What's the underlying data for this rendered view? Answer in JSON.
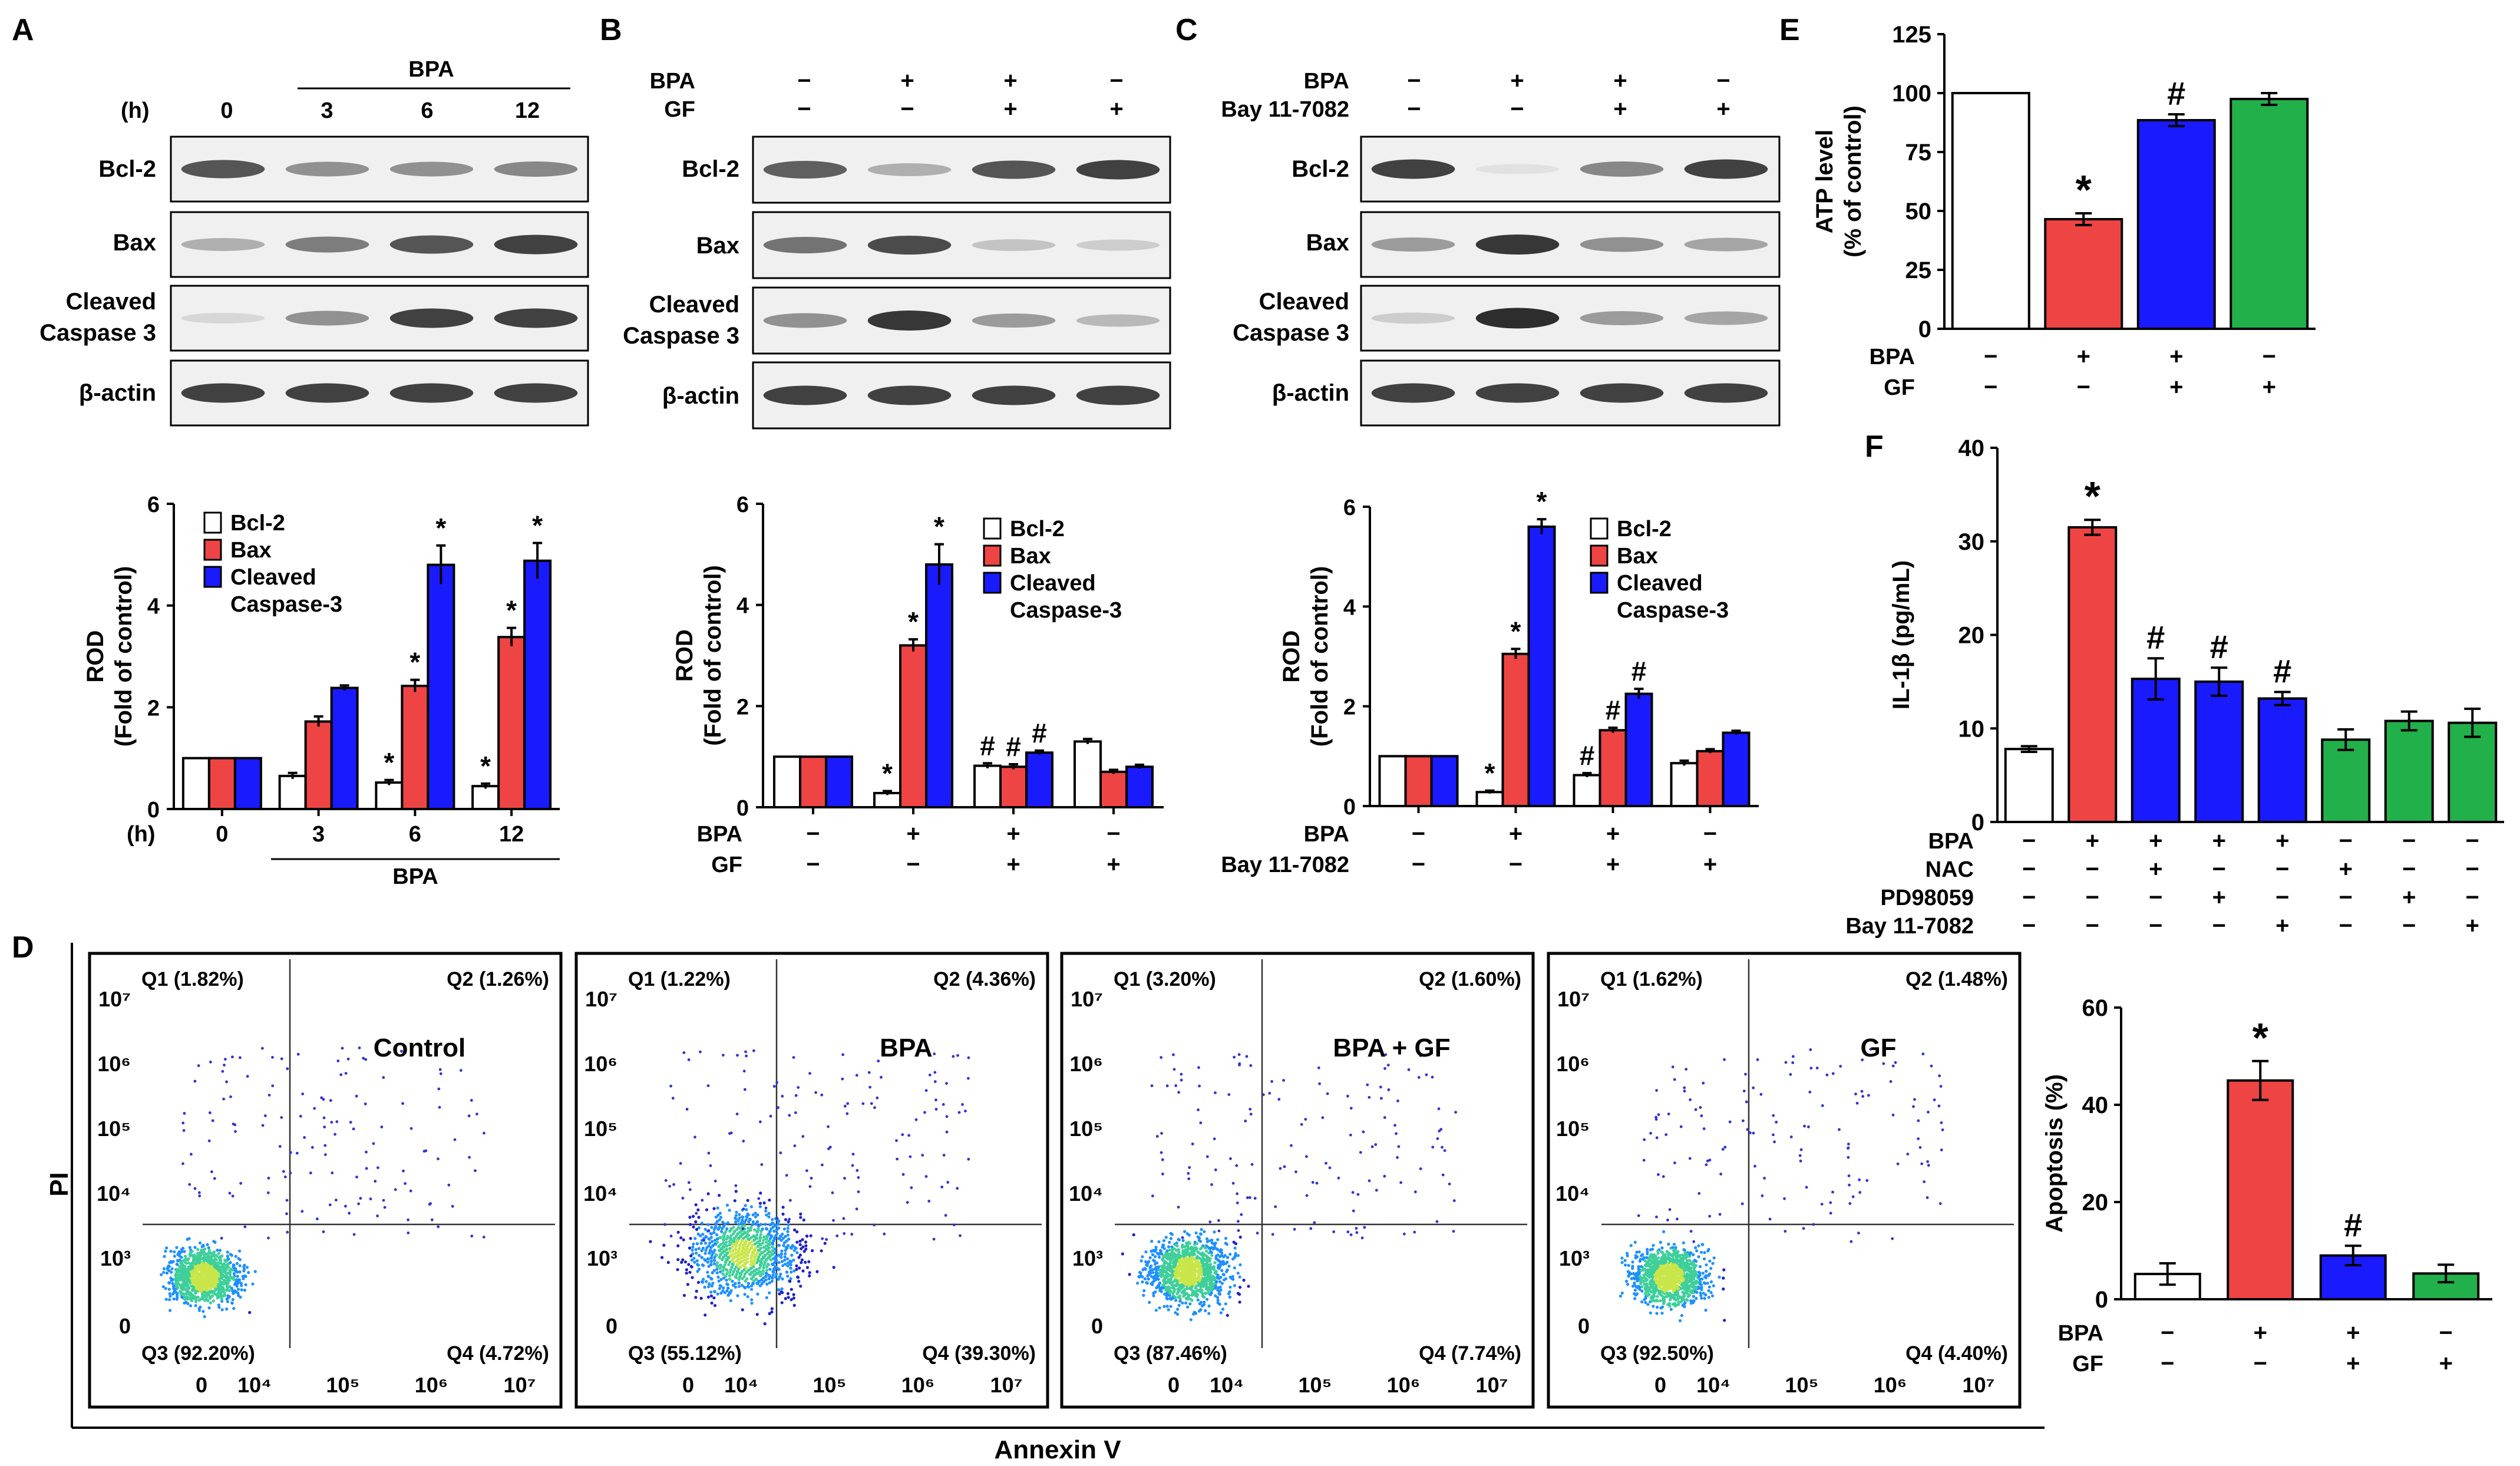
{
  "panels": {
    "A": "A",
    "B": "B",
    "C": "C",
    "D": "D",
    "E": "E",
    "F": "F"
  },
  "blotA": {
    "treatment_label": "BPA",
    "time_label": "(h)",
    "lanes": [
      "0",
      "3",
      "6",
      "12"
    ],
    "rows": [
      "Bcl-2",
      "Bax",
      "Cleaved Caspase 3",
      "β-actin"
    ]
  },
  "blotB": {
    "cond_rows": [
      {
        "label": "BPA",
        "signs": [
          "−",
          "+",
          "+",
          "−"
        ]
      },
      {
        "label": "GF",
        "signs": [
          "−",
          "−",
          "+",
          "+"
        ]
      }
    ],
    "rows": [
      "Bcl-2",
      "Bax",
      "Cleaved Caspase 3",
      "β-actin"
    ]
  },
  "blotC": {
    "cond_rows": [
      {
        "label": "BPA",
        "signs": [
          "−",
          "+",
          "+",
          "−"
        ]
      },
      {
        "label": "Bay 11-7082",
        "signs": [
          "−",
          "−",
          "+",
          "+"
        ]
      }
    ],
    "rows": [
      "Bcl-2",
      "Bax",
      "Cleaved Caspase 3",
      "β-actin"
    ]
  },
  "colors": {
    "white": "#ffffff",
    "red": "#ef4444",
    "blue": "#1a1aff",
    "green": "#22b04a"
  },
  "chart_data": [
    {
      "id": "A-bar",
      "type": "bar",
      "ylabel": "ROD (Fold of control)",
      "ylim": [
        0,
        6
      ],
      "yticks": [
        "0",
        "2",
        "4",
        "6"
      ],
      "categories": [
        "0",
        "3",
        "6",
        "12"
      ],
      "xprefix": "(h)",
      "xgroup_label": "BPA",
      "series": [
        {
          "name": "Bcl-2",
          "color": "#ffffff",
          "values": [
            1.0,
            0.65,
            0.52,
            0.45
          ],
          "err": [
            0,
            0.06,
            0.05,
            0.05
          ],
          "marks": [
            "",
            "",
            "*",
            "*"
          ]
        },
        {
          "name": "Bax",
          "color": "#ef4444",
          "values": [
            1.0,
            1.72,
            2.42,
            3.38
          ],
          "err": [
            0,
            0.1,
            0.12,
            0.18
          ],
          "marks": [
            "",
            "",
            "*",
            "*"
          ]
        },
        {
          "name": "Cleaved Caspase-3",
          "color": "#1a1aff",
          "values": [
            1.0,
            2.38,
            4.8,
            4.88
          ],
          "err": [
            0,
            0.05,
            0.38,
            0.35
          ],
          "marks": [
            "",
            "",
            "*",
            "*"
          ]
        }
      ],
      "legend": [
        "Bcl-2",
        "Bax",
        "Cleaved",
        "Caspase-3"
      ]
    },
    {
      "id": "B-bar",
      "type": "bar",
      "ylabel": "ROD (Fold of control)",
      "ylim": [
        0,
        6
      ],
      "yticks": [
        "0",
        "2",
        "4",
        "6"
      ],
      "categories": [
        "1",
        "2",
        "3",
        "4"
      ],
      "cond_rows": [
        {
          "label": "BPA",
          "signs": [
            "−",
            "+",
            "+",
            "−"
          ]
        },
        {
          "label": "GF",
          "signs": [
            "−",
            "−",
            "+",
            "+"
          ]
        }
      ],
      "series": [
        {
          "name": "Bcl-2",
          "color": "#ffffff",
          "values": [
            1.0,
            0.28,
            0.82,
            1.3
          ],
          "err": [
            0,
            0.04,
            0.05,
            0.05
          ],
          "marks": [
            "",
            "*",
            "#",
            ""
          ]
        },
        {
          "name": "Bax",
          "color": "#ef4444",
          "values": [
            1.0,
            3.2,
            0.8,
            0.7
          ],
          "err": [
            0,
            0.12,
            0.05,
            0.04
          ],
          "marks": [
            "",
            "*",
            "#",
            ""
          ]
        },
        {
          "name": "Cleaved Caspase-3",
          "color": "#1a1aff",
          "values": [
            1.0,
            4.8,
            1.08,
            0.8
          ],
          "err": [
            0,
            0.4,
            0.04,
            0.04
          ],
          "marks": [
            "",
            "*",
            "#",
            ""
          ]
        }
      ],
      "legend": [
        "Bcl-2",
        "Bax",
        "Cleaved",
        "Caspase-3"
      ]
    },
    {
      "id": "C-bar",
      "type": "bar",
      "ylabel": "ROD (Fold of control)",
      "ylim": [
        0,
        6
      ],
      "yticks": [
        "0",
        "2",
        "4",
        "6"
      ],
      "categories": [
        "1",
        "2",
        "3",
        "4"
      ],
      "cond_rows": [
        {
          "label": "BPA",
          "signs": [
            "−",
            "+",
            "+",
            "−"
          ]
        },
        {
          "label": "Bay 11-7082",
          "signs": [
            "−",
            "−",
            "+",
            "+"
          ]
        }
      ],
      "series": [
        {
          "name": "Bcl-2",
          "color": "#ffffff",
          "values": [
            1.0,
            0.28,
            0.62,
            0.86
          ],
          "err": [
            0,
            0.03,
            0.04,
            0.05
          ],
          "marks": [
            "",
            "*",
            "#",
            ""
          ]
        },
        {
          "name": "Bax",
          "color": "#ef4444",
          "values": [
            1.0,
            3.05,
            1.52,
            1.1
          ],
          "err": [
            0,
            0.1,
            0.05,
            0.04
          ],
          "marks": [
            "",
            "*",
            "#",
            ""
          ]
        },
        {
          "name": "Cleaved Caspase-3",
          "color": "#1a1aff",
          "values": [
            1.0,
            5.6,
            2.25,
            1.47
          ],
          "err": [
            0,
            0.15,
            0.1,
            0.04
          ],
          "marks": [
            "",
            "*",
            "#",
            ""
          ]
        }
      ],
      "legend": [
        "Bcl-2",
        "Bax",
        "Cleaved",
        "Caspase-3"
      ]
    },
    {
      "id": "E-bar",
      "type": "bar",
      "ylabel": "ATP level (% of control)",
      "ylim": [
        0,
        125
      ],
      "yticks": [
        "0",
        "25",
        "50",
        "75",
        "100",
        "125"
      ],
      "cond_rows": [
        {
          "label": "BPA",
          "signs": [
            "−",
            "+",
            "+",
            "−"
          ]
        },
        {
          "label": "GF",
          "signs": [
            "−",
            "−",
            "+",
            "+"
          ]
        }
      ],
      "values": [
        100,
        46.5,
        88.5,
        97.5
      ],
      "err": [
        0,
        2.5,
        2.5,
        2.5
      ],
      "colors": [
        "#ffffff",
        "#ef4444",
        "#1a1aff",
        "#22b04a"
      ],
      "marks": [
        "",
        "*",
        "#",
        ""
      ]
    },
    {
      "id": "F-bar",
      "type": "bar",
      "ylabel": "IL-1β (pg/mL)",
      "ylim": [
        0,
        40
      ],
      "yticks": [
        "0",
        "10",
        "20",
        "30",
        "40"
      ],
      "cond_rows": [
        {
          "label": "BPA",
          "signs": [
            "−",
            "+",
            "+",
            "+",
            "+",
            "−",
            "−",
            "−"
          ]
        },
        {
          "label": "NAC",
          "signs": [
            "−",
            "−",
            "+",
            "−",
            "−",
            "+",
            "−",
            "−"
          ]
        },
        {
          "label": "PD98059",
          "signs": [
            "−",
            "−",
            "−",
            "+",
            "−",
            "−",
            "+",
            "−"
          ]
        },
        {
          "label": "Bay 11-7082",
          "signs": [
            "−",
            "−",
            "−",
            "−",
            "+",
            "−",
            "−",
            "+"
          ]
        }
      ],
      "values": [
        7.8,
        31.5,
        15.3,
        15.0,
        13.2,
        8.8,
        10.8,
        10.6
      ],
      "err": [
        0.3,
        0.8,
        2.2,
        1.5,
        0.7,
        1.1,
        1.0,
        1.5
      ],
      "colors": [
        "#ffffff",
        "#ef4444",
        "#1a1aff",
        "#1a1aff",
        "#1a1aff",
        "#22b04a",
        "#22b04a",
        "#22b04a"
      ],
      "marks": [
        "",
        "*",
        "#",
        "#",
        "#",
        "",
        "",
        ""
      ]
    },
    {
      "id": "D-bar",
      "type": "bar",
      "ylabel": "Apoptosis (%)",
      "ylim": [
        0,
        60
      ],
      "yticks": [
        "0",
        "20",
        "40",
        "60"
      ],
      "cond_rows": [
        {
          "label": "BPA",
          "signs": [
            "−",
            "+",
            "+",
            "−"
          ]
        },
        {
          "label": "GF",
          "signs": [
            "−",
            "−",
            "+",
            "+"
          ]
        }
      ],
      "values": [
        5.2,
        45.0,
        9.0,
        5.3
      ],
      "err": [
        2.2,
        4.0,
        2.0,
        1.8
      ],
      "colors": [
        "#ffffff",
        "#ef4444",
        "#1a1aff",
        "#22b04a"
      ],
      "marks": [
        "",
        "*",
        "#",
        ""
      ]
    },
    {
      "id": "D-flow",
      "type": "scatter",
      "xlabel": "Annexin V",
      "ylabel": "PI",
      "ytick_labels": [
        "0",
        "10³",
        "10⁴",
        "10⁵",
        "10⁶",
        "10⁷"
      ],
      "xtick_labels": [
        "0",
        "10⁴",
        "10⁵",
        "10⁶",
        "10⁷"
      ],
      "plots": [
        {
          "title": "Control",
          "Q1": "Q1 (1.82%)",
          "Q2": "Q2 (1.26%)",
          "Q3": "Q3 (92.20%)",
          "Q4": "Q4 (4.72%)"
        },
        {
          "title": "BPA",
          "Q1": "Q1 (1.22%)",
          "Q2": "Q2 (4.36%)",
          "Q3": "Q3 (55.12%)",
          "Q4": "Q4 (39.30%)"
        },
        {
          "title": "BPA + GF",
          "Q1": "Q1 (3.20%)",
          "Q2": "Q2 (1.60%)",
          "Q3": "Q3 (87.46%)",
          "Q4": "Q4 (7.74%)"
        },
        {
          "title": "GF",
          "Q1": "Q1 (1.62%)",
          "Q2": "Q2 (1.48%)",
          "Q3": "Q3 (92.50%)",
          "Q4": "Q4 (4.40%)"
        }
      ]
    }
  ]
}
